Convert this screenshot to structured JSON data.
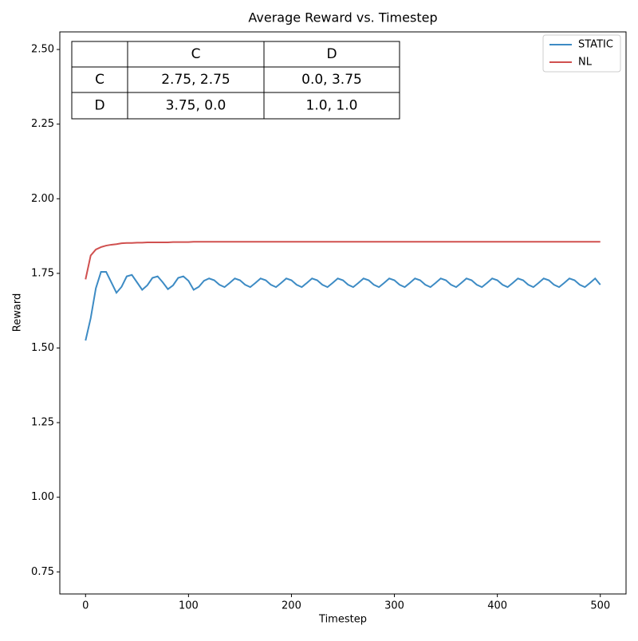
{
  "chart_data": {
    "type": "line",
    "title": "Average Reward vs. Timestep",
    "xlabel": "Timestep",
    "ylabel": "Reward",
    "x": [
      0,
      5,
      10,
      15,
      20,
      25,
      30,
      35,
      40,
      45,
      50,
      55,
      60,
      65,
      70,
      75,
      80,
      85,
      90,
      95,
      100,
      105,
      110,
      115,
      120,
      125,
      130,
      135,
      140,
      145,
      150,
      155,
      160,
      165,
      170,
      175,
      180,
      185,
      190,
      195,
      200,
      205,
      210,
      215,
      220,
      225,
      230,
      235,
      240,
      245,
      250,
      255,
      260,
      265,
      270,
      275,
      280,
      285,
      290,
      295,
      300,
      305,
      310,
      315,
      320,
      325,
      330,
      335,
      340,
      345,
      350,
      355,
      360,
      365,
      370,
      375,
      380,
      385,
      390,
      395,
      400,
      405,
      410,
      415,
      420,
      425,
      430,
      435,
      440,
      445,
      450,
      455,
      460,
      465,
      470,
      475,
      480,
      485,
      490,
      495,
      500
    ],
    "series": [
      {
        "name": "STATIC",
        "color": "#3d8bc4",
        "values": [
          1.525,
          1.6,
          1.7,
          1.755,
          1.755,
          1.72,
          1.685,
          1.705,
          1.74,
          1.745,
          1.72,
          1.695,
          1.71,
          1.735,
          1.74,
          1.72,
          1.697,
          1.71,
          1.735,
          1.74,
          1.725,
          1.695,
          1.705,
          1.725,
          1.733,
          1.727,
          1.712,
          1.704,
          1.718,
          1.733,
          1.727,
          1.712,
          1.704,
          1.718,
          1.733,
          1.727,
          1.712,
          1.704,
          1.718,
          1.733,
          1.727,
          1.712,
          1.704,
          1.718,
          1.733,
          1.727,
          1.712,
          1.704,
          1.718,
          1.733,
          1.727,
          1.712,
          1.704,
          1.718,
          1.733,
          1.727,
          1.712,
          1.704,
          1.718,
          1.733,
          1.727,
          1.712,
          1.704,
          1.718,
          1.733,
          1.727,
          1.712,
          1.704,
          1.718,
          1.733,
          1.727,
          1.712,
          1.704,
          1.718,
          1.733,
          1.727,
          1.712,
          1.704,
          1.718,
          1.733,
          1.727,
          1.712,
          1.704,
          1.718,
          1.733,
          1.727,
          1.712,
          1.704,
          1.718,
          1.733,
          1.727,
          1.712,
          1.704,
          1.718,
          1.733,
          1.727,
          1.712,
          1.704,
          1.718,
          1.733,
          1.712
        ]
      },
      {
        "name": "NL",
        "color": "#d0504f",
        "values": [
          1.73,
          1.81,
          1.83,
          1.838,
          1.843,
          1.846,
          1.848,
          1.851,
          1.852,
          1.852,
          1.853,
          1.853,
          1.854,
          1.854,
          1.854,
          1.854,
          1.854,
          1.855,
          1.855,
          1.855,
          1.855,
          1.856,
          1.856,
          1.856,
          1.856,
          1.856,
          1.856,
          1.856,
          1.856,
          1.856,
          1.856,
          1.856,
          1.856,
          1.856,
          1.856,
          1.856,
          1.856,
          1.856,
          1.856,
          1.856,
          1.856,
          1.856,
          1.856,
          1.856,
          1.856,
          1.856,
          1.856,
          1.856,
          1.856,
          1.856,
          1.856,
          1.856,
          1.856,
          1.856,
          1.856,
          1.856,
          1.856,
          1.856,
          1.856,
          1.856,
          1.856,
          1.856,
          1.856,
          1.856,
          1.856,
          1.856,
          1.856,
          1.856,
          1.856,
          1.856,
          1.856,
          1.856,
          1.856,
          1.856,
          1.856,
          1.856,
          1.856,
          1.856,
          1.856,
          1.856,
          1.856,
          1.856,
          1.856,
          1.856,
          1.856,
          1.856,
          1.856,
          1.856,
          1.856,
          1.856,
          1.856,
          1.856,
          1.856,
          1.856,
          1.856,
          1.856,
          1.856,
          1.856,
          1.856,
          1.856,
          1.856
        ]
      }
    ],
    "xlim": [
      -25,
      525
    ],
    "xticks": [
      0,
      100,
      200,
      300,
      400,
      500
    ],
    "ylim": [
      0.676,
      2.559
    ],
    "yticks": [
      0.75,
      {
        "value": 1.0,
        "label": "1.00"
      },
      1.25,
      {
        "value": 1.5,
        "label": "1.50"
      },
      1.75,
      {
        "value": 2.0,
        "label": "2.00"
      },
      2.25,
      {
        "value": 2.5,
        "label": "2.50"
      }
    ],
    "legend": "upper right",
    "table": {
      "columns": [
        "C",
        "D"
      ],
      "rows": [
        {
          "label": "C",
          "cells": [
            "2.75, 2.75",
            "0.0, 3.75"
          ]
        },
        {
          "label": "D",
          "cells": [
            "3.75, 0.0",
            "1.0, 1.0"
          ]
        }
      ]
    }
  }
}
